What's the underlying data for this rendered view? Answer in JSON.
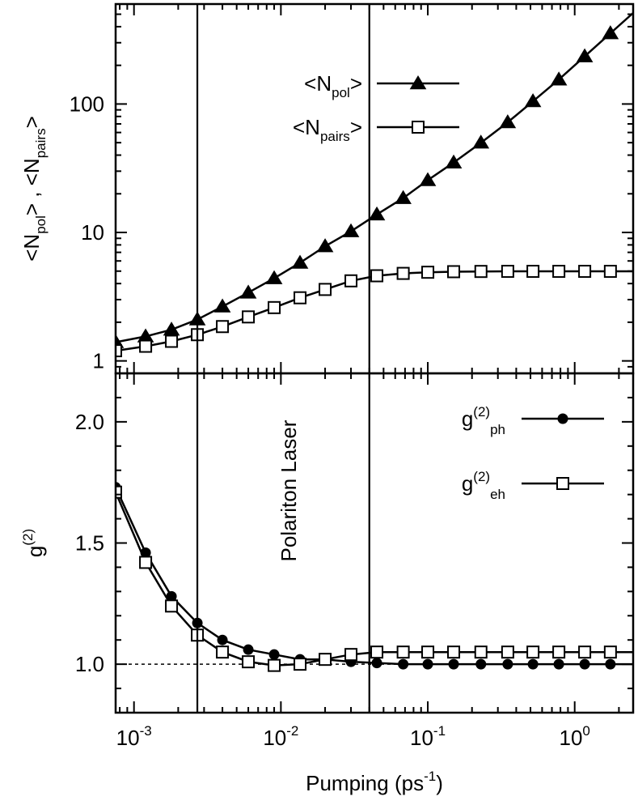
{
  "chart_data": [
    {
      "id": "top",
      "type": "line",
      "xscale": "log",
      "yscale": "log",
      "xlim": [
        0.00075,
        2.5
      ],
      "ylim": [
        0.8,
        600
      ],
      "yticks": [
        {
          "value": 1,
          "label": "1"
        },
        {
          "value": 10,
          "label": "10"
        },
        {
          "value": 100,
          "label": "100"
        }
      ],
      "ylabel": {
        "a": "<N",
        "a_sub": "pol",
        "b": "> , <N",
        "b_sub": "pairs",
        "c": ">"
      },
      "legend_placement": "top-center",
      "series": [
        {
          "label_main": "<N",
          "label_sub": "pol",
          "label_end": ">",
          "marker": "triangle",
          "x": [
            0.00075,
            0.0012,
            0.0018,
            0.0027,
            0.004,
            0.006,
            0.009,
            0.0135,
            0.02,
            0.03,
            0.045,
            0.068,
            0.1,
            0.15,
            0.23,
            0.35,
            0.52,
            0.78,
            1.17,
            1.75
          ],
          "y": [
            1.4,
            1.55,
            1.75,
            2.1,
            2.65,
            3.4,
            4.4,
            5.8,
            7.8,
            10.2,
            13.8,
            18.5,
            25.5,
            35,
            50,
            72,
            105,
            155,
            235,
            355
          ]
        },
        {
          "label_main": "<N",
          "label_sub": "pairs",
          "label_end": ">",
          "marker": "square-open",
          "x": [
            0.00075,
            0.0012,
            0.0018,
            0.0027,
            0.004,
            0.006,
            0.009,
            0.0135,
            0.02,
            0.03,
            0.045,
            0.068,
            0.1,
            0.15,
            0.23,
            0.35,
            0.52,
            0.78,
            1.17,
            1.75
          ],
          "y": [
            1.2,
            1.3,
            1.42,
            1.6,
            1.85,
            2.2,
            2.6,
            3.1,
            3.6,
            4.2,
            4.6,
            4.8,
            4.9,
            4.95,
            4.97,
            4.98,
            4.98,
            4.98,
            4.98,
            4.98
          ]
        }
      ]
    },
    {
      "id": "bottom",
      "type": "line",
      "xscale": "log",
      "yscale": "linear",
      "xlim": [
        0.00075,
        2.5
      ],
      "ylim": [
        0.8,
        2.2
      ],
      "yticks": [
        {
          "value": 1.0,
          "label": "1.0"
        },
        {
          "value": 1.5,
          "label": "1.5"
        },
        {
          "value": 2.0,
          "label": "2.0"
        }
      ],
      "xticks": [
        {
          "value": 0.001,
          "base": "10",
          "exp": "-3"
        },
        {
          "value": 0.01,
          "base": "10",
          "exp": "-2"
        },
        {
          "value": 0.1,
          "base": "10",
          "exp": "-1"
        },
        {
          "value": 1,
          "base": "10",
          "exp": "0"
        }
      ],
      "ylabel": {
        "base": "g",
        "sup": "(2)"
      },
      "xlabel": {
        "text": "Pumping (ps",
        "sup": "-1",
        "end": ")"
      },
      "reference_line": {
        "y": 1.0,
        "style": "dashed"
      },
      "annotation": "Polariton Laser",
      "legend_placement": "top-right",
      "series": [
        {
          "label_main": "g",
          "label_sup": "(2)",
          "label_sub": "ph",
          "marker": "circle-filled",
          "x": [
            0.00075,
            0.0012,
            0.0018,
            0.0027,
            0.004,
            0.006,
            0.009,
            0.0135,
            0.02,
            0.03,
            0.045,
            0.068,
            0.1,
            0.15,
            0.23,
            0.35,
            0.52,
            0.78,
            1.17,
            1.75
          ],
          "y": [
            1.73,
            1.46,
            1.28,
            1.17,
            1.1,
            1.06,
            1.04,
            1.02,
            1.02,
            1.01,
            1.005,
            1.0,
            1.0,
            1.0,
            1.0,
            1.0,
            1.0,
            1.0,
            1.0,
            1.0
          ]
        },
        {
          "label_main": "g",
          "label_sup": "(2)",
          "label_sub": "eh",
          "marker": "square-open",
          "x": [
            0.00075,
            0.0012,
            0.0018,
            0.0027,
            0.004,
            0.006,
            0.009,
            0.0135,
            0.02,
            0.03,
            0.045,
            0.068,
            0.1,
            0.15,
            0.23,
            0.35,
            0.52,
            0.78,
            1.17,
            1.75
          ],
          "y": [
            1.71,
            1.42,
            1.24,
            1.12,
            1.05,
            1.01,
            0.995,
            1.0,
            1.02,
            1.04,
            1.05,
            1.05,
            1.05,
            1.05,
            1.05,
            1.05,
            1.05,
            1.05,
            1.05,
            1.05
          ]
        }
      ]
    }
  ],
  "vertical_lines_x": [
    0.0027,
    0.04
  ]
}
